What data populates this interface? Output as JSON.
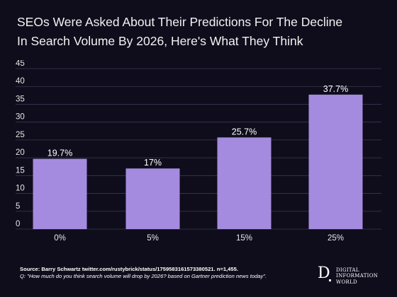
{
  "title_lines": [
    "SEOs Were Asked About Their Predictions For The Decline",
    "In Search Volume By 2026, Here's What They Think"
  ],
  "colors": {
    "background": "#0f0d1c",
    "bar": "#a58bdf",
    "grid": "#3a3850",
    "text": "#ffffff"
  },
  "chart_data": {
    "type": "bar",
    "categories": [
      "0%",
      "5%",
      "15%",
      "25%"
    ],
    "values": [
      19.7,
      17,
      25.7,
      37.7
    ],
    "data_labels": [
      "19.7%",
      "17%",
      "25.7%",
      "37.7%"
    ],
    "title": "SEOs Were Asked About Their Predictions For The Decline In Search Volume By 2026, Here's What They Think",
    "xlabel": "",
    "ylabel": "",
    "ylim": [
      0,
      45
    ],
    "yticks": [
      0,
      5,
      10,
      15,
      20,
      25,
      30,
      35,
      40,
      45
    ],
    "grid": true,
    "legend": "none"
  },
  "footer": {
    "source": "Source: Barry Schwartz twitter.com/rustybrick/status/1759583161573380521. n=1,455.",
    "question": "Q: \"How much do you think search volume will drop by 2026? based on Gartner prediction news today\"."
  },
  "logo": {
    "mark": "D",
    "words": [
      "DIGITAL",
      "INFORMATION",
      "WORLD"
    ]
  }
}
